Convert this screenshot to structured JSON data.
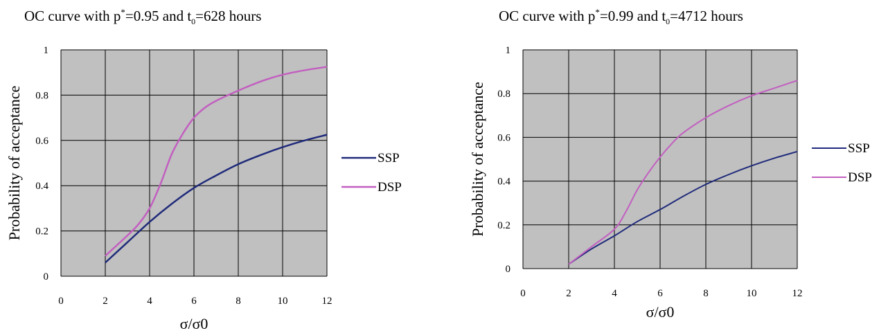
{
  "chart_data": [
    {
      "type": "line",
      "title": {
        "pre": "OC curve with p",
        "sup": "*",
        "mid": "=0.95 and t",
        "sub": "0",
        "post": "=628 hours"
      },
      "xlabel": "σ/σ0",
      "ylabel": "Probability of acceptance",
      "xlim": [
        0,
        12
      ],
      "ylim": [
        0,
        1
      ],
      "xticks": [
        "0",
        "2",
        "4",
        "6",
        "8",
        "10",
        "12"
      ],
      "yticks": [
        "0",
        "0.2",
        "0.4",
        "0.6",
        "0.8",
        "1"
      ],
      "grid": true,
      "plot_background": "#c0c0c0",
      "legend_position": "right",
      "series": [
        {
          "name": "SSP",
          "color": "#1f2a7a",
          "x": [
            2,
            3,
            4,
            5,
            6,
            7,
            8,
            9,
            10,
            11,
            12
          ],
          "values": [
            0.06,
            0.15,
            0.24,
            0.32,
            0.39,
            0.445,
            0.495,
            0.535,
            0.57,
            0.6,
            0.625
          ]
        },
        {
          "name": "DSP",
          "color": "#c25fc0",
          "x": [
            2,
            3,
            3.5,
            4,
            4.5,
            5,
            5.5,
            6,
            6.5,
            7,
            8,
            9,
            10,
            11,
            12
          ],
          "values": [
            0.09,
            0.18,
            0.23,
            0.3,
            0.41,
            0.54,
            0.63,
            0.7,
            0.745,
            0.775,
            0.82,
            0.86,
            0.89,
            0.91,
            0.925
          ]
        }
      ]
    },
    {
      "type": "line",
      "title": {
        "pre": "OC curve with p",
        "sup": "*",
        "mid": "=0.99 and t",
        "sub": "0",
        "post": "=4712 hours"
      },
      "xlabel": "σ/σ0",
      "ylabel": "Probability of acceptance",
      "xlim": [
        0,
        12
      ],
      "ylim": [
        0,
        1
      ],
      "xticks": [
        "0",
        "2",
        "4",
        "6",
        "8",
        "10",
        "12"
      ],
      "yticks": [
        "0",
        "0.2",
        "0.4",
        "0.6",
        "0.8",
        "1"
      ],
      "grid": true,
      "plot_background": "#c0c0c0",
      "legend_position": "right",
      "series": [
        {
          "name": "SSP",
          "color": "#1f2a7a",
          "x": [
            2,
            3,
            4,
            5,
            6,
            7,
            8,
            9,
            10,
            11,
            12
          ],
          "values": [
            0.02,
            0.09,
            0.15,
            0.215,
            0.27,
            0.33,
            0.385,
            0.43,
            0.47,
            0.505,
            0.535
          ]
        },
        {
          "name": "DSP",
          "color": "#c25fc0",
          "x": [
            2,
            3,
            4,
            4.5,
            5,
            5.5,
            6,
            6.5,
            7,
            8,
            9,
            10,
            11,
            12
          ],
          "values": [
            0.02,
            0.1,
            0.18,
            0.26,
            0.36,
            0.44,
            0.51,
            0.57,
            0.62,
            0.69,
            0.745,
            0.79,
            0.825,
            0.86
          ]
        }
      ]
    }
  ]
}
